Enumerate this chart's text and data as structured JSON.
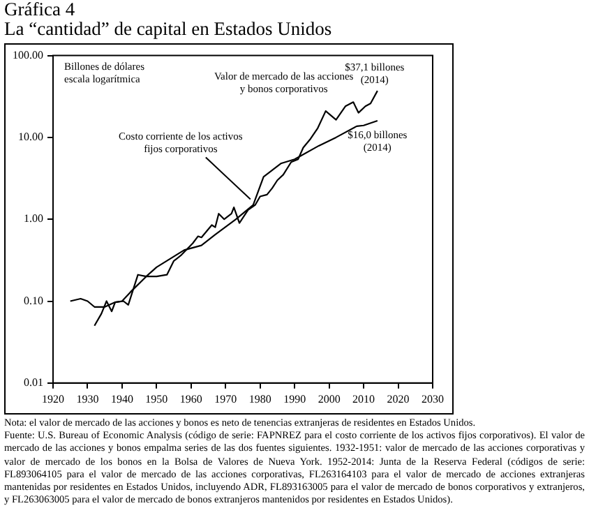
{
  "chart_data": {
    "type": "line",
    "title": "Gráfica 4",
    "subtitle": "La “cantidad” de capital en Estados Unidos",
    "ylabel": "Billones de dólares escala logarítmica",
    "log": "y",
    "xlim": [
      1920,
      2030
    ],
    "xticks": [
      1920,
      1930,
      1940,
      1950,
      1960,
      1970,
      1980,
      1990,
      2000,
      2010,
      2020,
      2030
    ],
    "ylim": [
      0.01,
      100
    ],
    "yticks": [
      {
        "value": 0.01,
        "label": "0.01"
      },
      {
        "value": 0.1,
        "label": "0.10"
      },
      {
        "value": 1,
        "label": "1.00"
      },
      {
        "value": 10,
        "label": "10.00"
      },
      {
        "value": 100,
        "label": "100.00"
      }
    ],
    "marker": "none",
    "line_style": "solid",
    "series": [
      {
        "color": "#000000",
        "x": [
          1925,
          1928,
          1930,
          1932,
          1935,
          1938,
          1940,
          1942.5,
          1947,
          1950,
          1954,
          1958,
          1963,
          1967,
          1973,
          1978,
          1981,
          1986,
          1990,
          1997,
          2002,
          2008,
          2010,
          2014
        ],
        "values": [
          0.1,
          0.107,
          0.1,
          0.085,
          0.085,
          0.097,
          0.1,
          0.13,
          0.2,
          0.26,
          0.33,
          0.42,
          0.48,
          0.65,
          1.0,
          1.5,
          3.3,
          4.8,
          5.4,
          7.9,
          10,
          13.7,
          14,
          16.0
        ]
      },
      {
        "color": "#000000",
        "x": [
          1932,
          1934,
          1935.5,
          1937,
          1938,
          1940.4,
          1941.8,
          1944.6,
          1947,
          1950,
          1953,
          1955,
          1957,
          1960.5,
          1962,
          1963,
          1966,
          1967,
          1968,
          1969.6,
          1971.7,
          1972.4,
          1974,
          1976.5,
          1978.6,
          1980,
          1982,
          1983.5,
          1985,
          1986.7,
          1989,
          1991,
          1992.5,
          1994.6,
          1996.7,
          1999,
          2002,
          2004.7,
          2007,
          2008.5,
          2010.5,
          2012,
          2014
        ],
        "values": [
          0.05,
          0.07,
          0.1,
          0.075,
          0.097,
          0.1,
          0.09,
          0.21,
          0.2,
          0.2,
          0.21,
          0.31,
          0.36,
          0.51,
          0.62,
          0.6,
          0.85,
          0.8,
          1.17,
          1.0,
          1.17,
          1.4,
          0.9,
          1.3,
          1.5,
          1.9,
          2.0,
          2.4,
          3.0,
          3.5,
          5.0,
          5.4,
          7.5,
          9.6,
          13,
          21,
          16.4,
          24,
          27,
          20,
          24,
          26,
          37.1
        ]
      }
    ],
    "annotations": [
      {
        "text": "Valor de mercado de las acciones y bonos corporativos",
        "x": 1999,
        "y": 21
      },
      {
        "text": "$37,1 billones (2014)",
        "x": 2014,
        "y": 37.1
      },
      {
        "text": "$16,0 billones (2014)",
        "x": 2014,
        "y": 16
      },
      {
        "text": "Costo corriente de los activos fijos corporativos",
        "x": 1978,
        "y": 1.5
      },
      "Nota: el valor de mercado de las acciones y bonos es neto de tenencias extranjeras de residentes en Estados Unidos.",
      "Fuente: U.S. Bureau of Economic Analysis (código de serie: FAPNREZ para el costo corriente de los activos fijos corporativos). El valor de mercado de las acciones y bonos empalma series de las dos fuentes siguientes. 1932-1951: valor de mercado de las acciones corporativas y valor de mercado de los bonos en la Bolsa de Valores de Nueva York. 1952-2014: Junta de la Reserva Federal (códigos de serie: FL893064105 para el valor de mercado de las acciones corporativas, FL263164103 para el valor de mercado de acciones extranjeras mantenidas por residentes en Estados Unidos, incluyendo ADR, FL893163005 para el valor de mercado de bonos corporativos y extranjeros, y FL263063005 para el valor de mercado de bonos extranjeros mantenidos por residentes en Estados Unidos)."
    ]
  }
}
